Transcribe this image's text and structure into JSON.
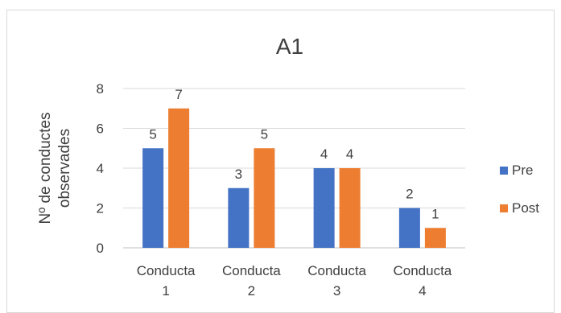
{
  "chart_data": {
    "type": "bar",
    "title": "A1",
    "ylabel": "Nº de conductes observades",
    "xlabel": "",
    "categories": [
      "Conducta 1",
      "Conducta 2",
      "Conducta 3",
      "Conducta 4"
    ],
    "category_lines": [
      [
        "Conducta",
        "1"
      ],
      [
        "Conducta",
        "2"
      ],
      [
        "Conducta",
        "3"
      ],
      [
        "Conducta",
        "4"
      ]
    ],
    "series": [
      {
        "name": "Pre",
        "values": [
          5,
          3,
          4,
          2
        ],
        "color": "#4472C4"
      },
      {
        "name": "Post",
        "values": [
          7,
          5,
          4,
          1
        ],
        "color": "#ED7D31"
      }
    ],
    "ylim": [
      0,
      8
    ],
    "yticks": [
      "0",
      "2",
      "4",
      "6",
      "8"
    ],
    "grid": true,
    "legend": "right",
    "data_labels": true
  }
}
